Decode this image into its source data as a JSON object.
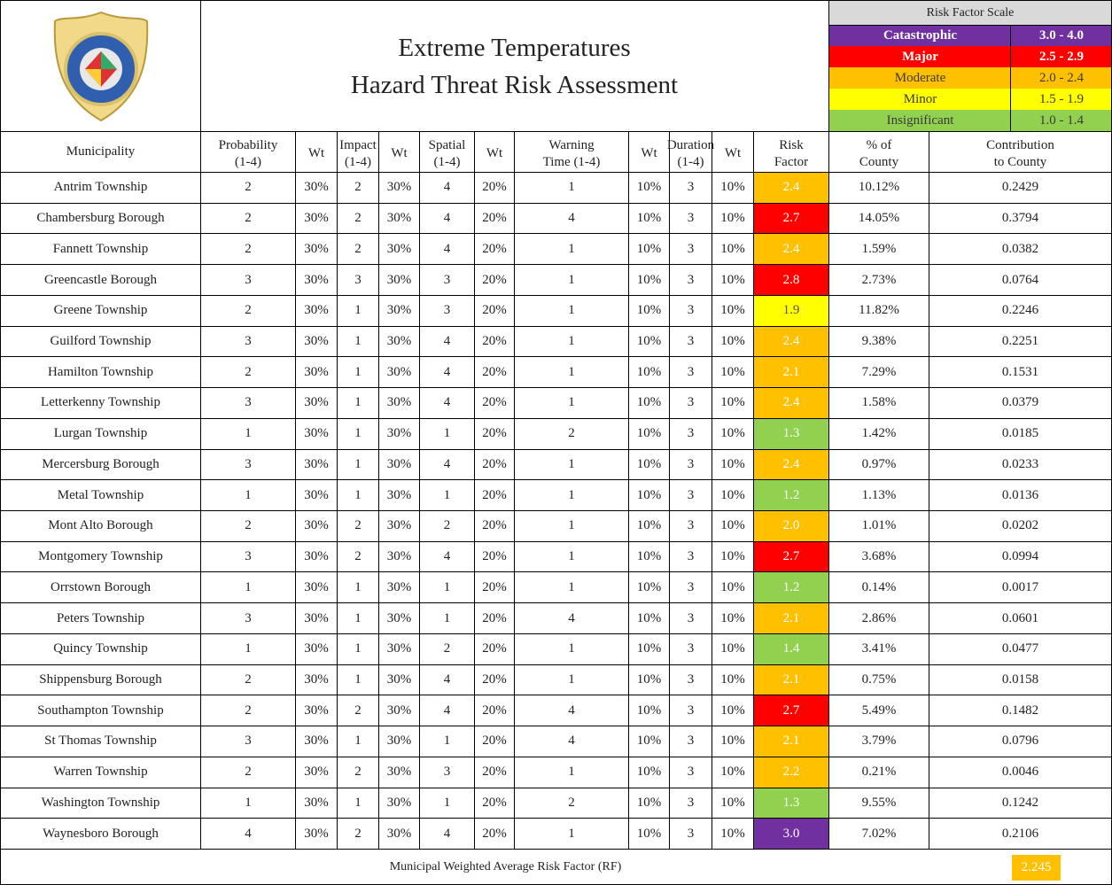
{
  "header": {
    "title": [
      "Extreme Temperatures",
      "Hazard Threat Risk Assessment"
    ]
  },
  "scale": {
    "title": "Risk Factor Scale",
    "levels": [
      {
        "label": "Catastrophic",
        "range": "3.0 - 4.0",
        "color": "#7030a0",
        "text_color": "#ffffff",
        "bold": true
      },
      {
        "label": "Major",
        "range": "2.5 - 2.9",
        "color": "#ff0000",
        "text_color": "#ffffff",
        "bold": true
      },
      {
        "label": "Moderate",
        "range": "2.0 - 2.4",
        "color": "#ffc000",
        "text_color": "#3a3a3a",
        "bold": false
      },
      {
        "label": "Minor",
        "range": "1.5 - 1.9",
        "color": "#ffff00",
        "text_color": "#3a3a3a",
        "bold": false
      },
      {
        "label": "Insignificant",
        "range": "1.0 - 1.4",
        "color": "#92d050",
        "text_color": "#3a3a3a",
        "bold": false
      }
    ]
  },
  "table": {
    "columns": [
      "Municipality",
      "Probability\n(1-4)",
      "Wt",
      "Impact\n(1-4)",
      "Wt",
      "Spatial\n(1-4)",
      "Wt",
      "Warning\nTime (1-4)",
      "Wt",
      "Duration\n(1-4)",
      "Wt",
      "Risk\nFactor",
      "% of\nCounty",
      "Contribution\nto County"
    ],
    "rows": [
      [
        "Antrim Township",
        "2",
        "30%",
        "2",
        "30%",
        "4",
        "20%",
        "1",
        "10%",
        "3",
        "10%",
        "2.4",
        "10.12%",
        "0.2429"
      ],
      [
        "Chambersburg Borough",
        "2",
        "30%",
        "2",
        "30%",
        "4",
        "20%",
        "4",
        "10%",
        "3",
        "10%",
        "2.7",
        "14.05%",
        "0.3794"
      ],
      [
        "Fannett Township",
        "2",
        "30%",
        "2",
        "30%",
        "4",
        "20%",
        "1",
        "10%",
        "3",
        "10%",
        "2.4",
        "1.59%",
        "0.0382"
      ],
      [
        "Greencastle Borough",
        "3",
        "30%",
        "3",
        "30%",
        "3",
        "20%",
        "1",
        "10%",
        "3",
        "10%",
        "2.8",
        "2.73%",
        "0.0764"
      ],
      [
        "Greene Township",
        "2",
        "30%",
        "1",
        "30%",
        "3",
        "20%",
        "1",
        "10%",
        "3",
        "10%",
        "1.9",
        "11.82%",
        "0.2246"
      ],
      [
        "Guilford Township",
        "3",
        "30%",
        "1",
        "30%",
        "4",
        "20%",
        "1",
        "10%",
        "3",
        "10%",
        "2.4",
        "9.38%",
        "0.2251"
      ],
      [
        "Hamilton Township",
        "2",
        "30%",
        "1",
        "30%",
        "4",
        "20%",
        "1",
        "10%",
        "3",
        "10%",
        "2.1",
        "7.29%",
        "0.1531"
      ],
      [
        "Letterkenny  Township",
        "3",
        "30%",
        "1",
        "30%",
        "4",
        "20%",
        "1",
        "10%",
        "3",
        "10%",
        "2.4",
        "1.58%",
        "0.0379"
      ],
      [
        "Lurgan Township",
        "1",
        "30%",
        "1",
        "30%",
        "1",
        "20%",
        "2",
        "10%",
        "3",
        "10%",
        "1.3",
        "1.42%",
        "0.0185"
      ],
      [
        "Mercersburg Borough",
        "3",
        "30%",
        "1",
        "30%",
        "4",
        "20%",
        "1",
        "10%",
        "3",
        "10%",
        "2.4",
        "0.97%",
        "0.0233"
      ],
      [
        "Metal Township",
        "1",
        "30%",
        "1",
        "30%",
        "1",
        "20%",
        "1",
        "10%",
        "3",
        "10%",
        "1.2",
        "1.13%",
        "0.0136"
      ],
      [
        "Mont Alto Borough",
        "2",
        "30%",
        "2",
        "30%",
        "2",
        "20%",
        "1",
        "10%",
        "3",
        "10%",
        "2.0",
        "1.01%",
        "0.0202"
      ],
      [
        "Montgomery Township",
        "3",
        "30%",
        "2",
        "30%",
        "4",
        "20%",
        "1",
        "10%",
        "3",
        "10%",
        "2.7",
        "3.68%",
        "0.0994"
      ],
      [
        "Orrstown Borough",
        "1",
        "30%",
        "1",
        "30%",
        "1",
        "20%",
        "1",
        "10%",
        "3",
        "10%",
        "1.2",
        "0.14%",
        "0.0017"
      ],
      [
        "Peters Township",
        "3",
        "30%",
        "1",
        "30%",
        "1",
        "20%",
        "4",
        "10%",
        "3",
        "10%",
        "2.1",
        "2.86%",
        "0.0601"
      ],
      [
        "Quincy Township",
        "1",
        "30%",
        "1",
        "30%",
        "2",
        "20%",
        "1",
        "10%",
        "3",
        "10%",
        "1.4",
        "3.41%",
        "0.0477"
      ],
      [
        "Shippensburg Borough",
        "2",
        "30%",
        "1",
        "30%",
        "4",
        "20%",
        "1",
        "10%",
        "3",
        "10%",
        "2.1",
        "0.75%",
        "0.0158"
      ],
      [
        "Southampton Township",
        "2",
        "30%",
        "2",
        "30%",
        "4",
        "20%",
        "4",
        "10%",
        "3",
        "10%",
        "2.7",
        "5.49%",
        "0.1482"
      ],
      [
        "St Thomas Township",
        "3",
        "30%",
        "1",
        "30%",
        "1",
        "20%",
        "4",
        "10%",
        "3",
        "10%",
        "2.1",
        "3.79%",
        "0.0796"
      ],
      [
        "Warren Township",
        "2",
        "30%",
        "2",
        "30%",
        "3",
        "20%",
        "1",
        "10%",
        "3",
        "10%",
        "2.2",
        "0.21%",
        "0.0046"
      ],
      [
        "Washington Township",
        "1",
        "30%",
        "1",
        "30%",
        "1",
        "20%",
        "2",
        "10%",
        "3",
        "10%",
        "1.3",
        "9.55%",
        "0.1242"
      ],
      [
        "Waynesboro Borough",
        "4",
        "30%",
        "2",
        "30%",
        "4",
        "20%",
        "1",
        "10%",
        "3",
        "10%",
        "3.0",
        "7.02%",
        "0.2106"
      ]
    ],
    "footer": {
      "label": "Municipal Weighted Average Risk Factor (RF)",
      "value": "2.245"
    }
  }
}
